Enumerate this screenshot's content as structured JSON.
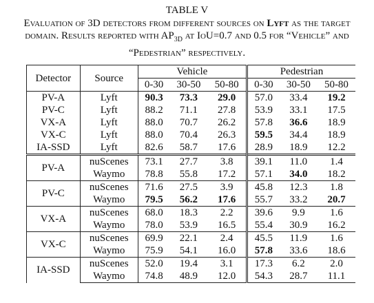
{
  "caption": {
    "label": "TABLE V",
    "parts": [
      "Evaluation of 3D detectors from different sources on ",
      "Lyft",
      " as the target domain. Results reported with AP",
      "3D",
      " at IoU=0.7 and 0.5 for “Vehicle” and “Pedestrian” respectively."
    ]
  },
  "table": {
    "header": {
      "detector": "Detector",
      "source": "Source",
      "groups": [
        "Vehicle",
        "Pedestrian"
      ],
      "ranges": [
        "0-30",
        "30-50",
        "50-80",
        "0-30",
        "30-50",
        "50-80"
      ]
    },
    "lyft_rows": [
      {
        "detector": "PV-A",
        "source": "Lyft",
        "values": [
          "90.3",
          "73.3",
          "29.0",
          "57.0",
          "33.4",
          "19.2"
        ],
        "bold": [
          0,
          1,
          2,
          5
        ]
      },
      {
        "detector": "PV-C",
        "source": "Lyft",
        "values": [
          "88.2",
          "71.1",
          "27.8",
          "53.9",
          "33.1",
          "17.5"
        ],
        "bold": []
      },
      {
        "detector": "VX-A",
        "source": "Lyft",
        "values": [
          "88.0",
          "70.7",
          "26.2",
          "57.8",
          "36.6",
          "18.9"
        ],
        "bold": [
          4
        ]
      },
      {
        "detector": "VX-C",
        "source": "Lyft",
        "values": [
          "88.0",
          "70.4",
          "26.3",
          "59.5",
          "34.4",
          "18.9"
        ],
        "bold": [
          3
        ]
      },
      {
        "detector": "IA-SSD",
        "source": "Lyft",
        "values": [
          "82.6",
          "58.7",
          "17.6",
          "28.9",
          "18.9",
          "12.2"
        ],
        "bold": []
      }
    ],
    "cross_groups": [
      {
        "detector": "PV-A",
        "rows": [
          {
            "source": "nuScenes",
            "values": [
              "73.1",
              "27.7",
              "3.8",
              "39.1",
              "11.0",
              "1.4"
            ],
            "bold": []
          },
          {
            "source": "Waymo",
            "values": [
              "78.8",
              "55.8",
              "17.2",
              "57.1",
              "34.0",
              "18.2"
            ],
            "bold": [
              4
            ]
          }
        ]
      },
      {
        "detector": "PV-C",
        "rows": [
          {
            "source": "nuScenes",
            "values": [
              "71.6",
              "27.5",
              "3.9",
              "45.8",
              "12.3",
              "1.8"
            ],
            "bold": []
          },
          {
            "source": "Waymo",
            "values": [
              "79.5",
              "56.2",
              "17.6",
              "55.7",
              "33.2",
              "20.7"
            ],
            "bold": [
              0,
              1,
              2,
              5
            ]
          }
        ]
      },
      {
        "detector": "VX-A",
        "rows": [
          {
            "source": "nuScenes",
            "values": [
              "68.0",
              "18.3",
              "2.2",
              "39.6",
              "9.9",
              "1.6"
            ],
            "bold": []
          },
          {
            "source": "Waymo",
            "values": [
              "78.0",
              "53.9",
              "16.5",
              "55.4",
              "30.9",
              "16.2"
            ],
            "bold": []
          }
        ]
      },
      {
        "detector": "VX-C",
        "rows": [
          {
            "source": "nuScenes",
            "values": [
              "69.9",
              "22.1",
              "2.4",
              "45.5",
              "11.9",
              "1.6"
            ],
            "bold": []
          },
          {
            "source": "Waymo",
            "values": [
              "75.9",
              "54.1",
              "16.0",
              "57.8",
              "33.6",
              "18.6"
            ],
            "bold": [
              3
            ]
          }
        ]
      },
      {
        "detector": "IA-SSD",
        "rows": [
          {
            "source": "nuScenes",
            "values": [
              "52.0",
              "19.4",
              "3.1",
              "17.3",
              "6.2",
              "2.0"
            ],
            "bold": []
          },
          {
            "source": "Waymo",
            "values": [
              "74.8",
              "48.9",
              "12.0",
              "54.3",
              "28.7",
              "11.1"
            ],
            "bold": []
          }
        ]
      }
    ]
  }
}
